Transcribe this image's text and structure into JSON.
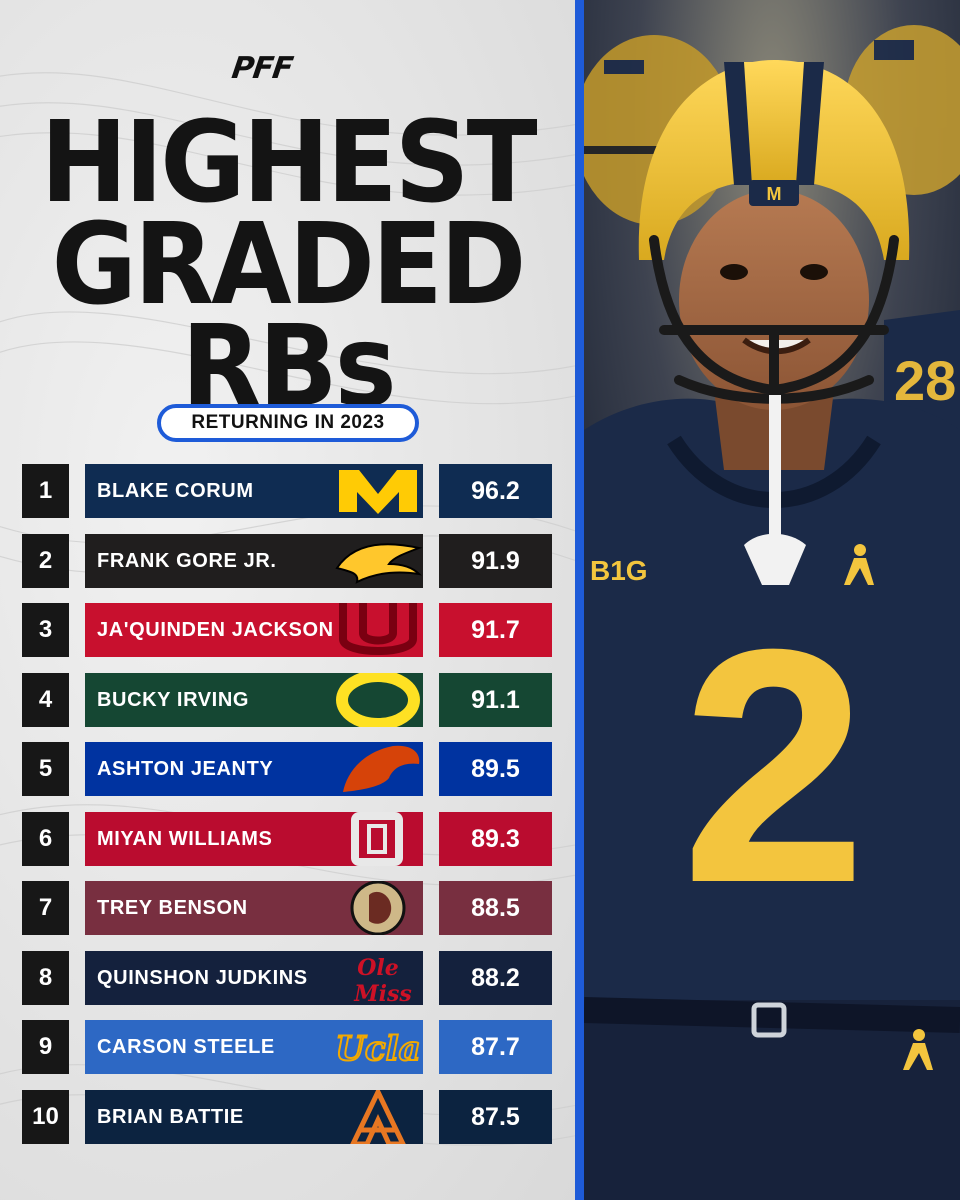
{
  "brand": "PFF",
  "title": {
    "line1": "HIGHEST",
    "line2": "GRADED",
    "line3": "RBs"
  },
  "subtitle": "RETURNING IN 2023",
  "rows": [
    {
      "rank": "1",
      "player": "BLAKE CORUM",
      "grade": "96.2",
      "color": "#0f2c52",
      "logo_color": "#ffcb05",
      "logo": "michigan-m-logo"
    },
    {
      "rank": "2",
      "player": "FRANK GORE JR.",
      "grade": "91.9",
      "color": "#201e1e",
      "logo_color": "#ffc72c",
      "logo": "southern-miss-eagle-logo"
    },
    {
      "rank": "3",
      "player": "JA'QUINDEN JACKSON",
      "grade": "91.7",
      "color": "#c8102e",
      "logo_color": "#7a0011",
      "logo": "utah-u-logo"
    },
    {
      "rank": "4",
      "player": "BUCKY IRVING",
      "grade": "91.1",
      "color": "#154733",
      "logo_color": "#fee123",
      "logo": "oregon-o-logo"
    },
    {
      "rank": "5",
      "player": "ASHTON JEANTY",
      "grade": "89.5",
      "color": "#0033a0",
      "logo_color": "#d64309",
      "logo": "boise-state-bronco-logo"
    },
    {
      "rank": "6",
      "player": "MIYAN WILLIAMS",
      "grade": "89.3",
      "color": "#ba0c2f",
      "logo_color": "#e8e8e8",
      "logo": "ohio-state-o-logo"
    },
    {
      "rank": "7",
      "player": "TREY BENSON",
      "grade": "88.5",
      "color": "#782f40",
      "logo_color": "#ceb888",
      "logo": "florida-state-seminole-logo"
    },
    {
      "rank": "8",
      "player": "QUINSHON JUDKINS",
      "grade": "88.2",
      "color": "#14213d",
      "logo_color": "#ce1126",
      "logo": "ole-miss-logo"
    },
    {
      "rank": "9",
      "player": "CARSON STEELE",
      "grade": "87.7",
      "color": "#2d68c4",
      "logo_color": "#f2a900",
      "logo": "ucla-logo"
    },
    {
      "rank": "10",
      "player": "BRIAN BATTIE",
      "grade": "87.5",
      "color": "#0c2340",
      "logo_color": "#e87722",
      "logo": "auburn-au-logo"
    }
  ],
  "photo": {
    "jersey_number": "2",
    "chest_patch": "B1G",
    "helmet_badge": "M",
    "back_number": "28",
    "primary_color": "#1b2a48",
    "accent_color": "#f3c53e"
  }
}
